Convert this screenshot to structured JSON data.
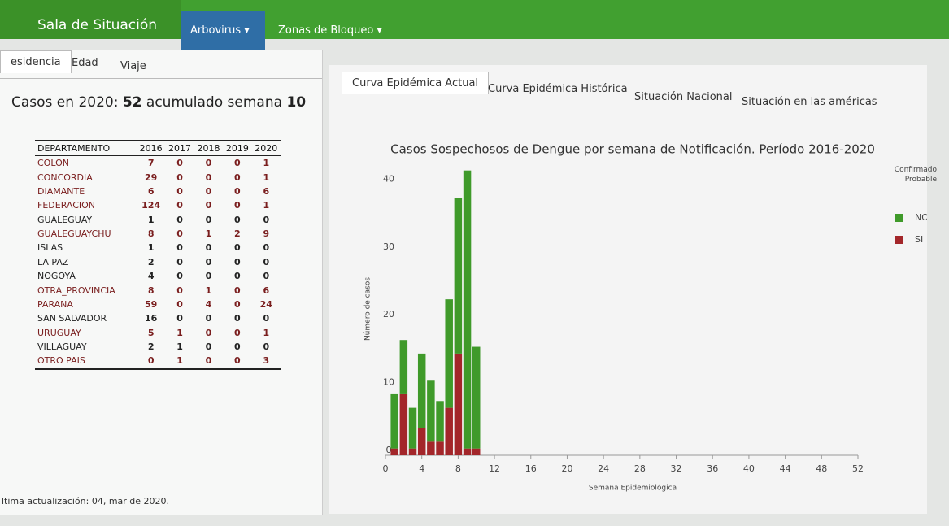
{
  "header": {
    "brand": "Sala de Situación",
    "menu": [
      "Arbovirus",
      "Zonas de Bloqueo"
    ]
  },
  "left_tabs": [
    "esidencia",
    "Edad",
    "Viaje"
  ],
  "summary": {
    "label": "Casos en 2020:",
    "cases": 52,
    "text": "acumulado semana",
    "week": 10
  },
  "table": {
    "columns": [
      "DEPARTAMENTO",
      "2016",
      "2017",
      "2018",
      "2019",
      "2020"
    ],
    "rows": [
      [
        "COLON",
        7,
        0,
        0,
        0,
        1
      ],
      [
        "CONCORDIA",
        29,
        0,
        0,
        0,
        1
      ],
      [
        "DIAMANTE",
        6,
        0,
        0,
        0,
        6
      ],
      [
        "FEDERACION",
        124,
        0,
        0,
        0,
        1
      ],
      [
        "GUALEGUAY",
        1,
        0,
        0,
        0,
        0
      ],
      [
        "GUALEGUAYCHU",
        8,
        0,
        1,
        2,
        9
      ],
      [
        "ISLAS",
        1,
        0,
        0,
        0,
        0
      ],
      [
        "LA PAZ",
        2,
        0,
        0,
        0,
        0
      ],
      [
        "NOGOYA",
        4,
        0,
        0,
        0,
        0
      ],
      [
        "OTRA_PROVINCIA",
        8,
        0,
        1,
        0,
        6
      ],
      [
        "PARANA",
        59,
        0,
        4,
        0,
        24
      ],
      [
        "SAN SALVADOR",
        16,
        0,
        0,
        0,
        0
      ],
      [
        "URUGUAY",
        5,
        1,
        0,
        0,
        1
      ],
      [
        "VILLAGUAY",
        2,
        1,
        0,
        0,
        0
      ],
      [
        "OTRO PAIS",
        0,
        1,
        0,
        0,
        3
      ]
    ]
  },
  "right_tabs": [
    "Curva Epidémica Actual",
    "Curva Epidémica Histórica",
    "Situación Nacional",
    "Situación en las américas"
  ],
  "chart_data": {
    "type": "bar",
    "stacked": true,
    "title": "Casos Sospechosos de Dengue por semana de Notificación. Período 2016-2020",
    "x_label": "Semana Epidemiológica",
    "y_label": "Número de casos",
    "legend_title": "Confirmado Probable",
    "x": [
      1,
      2,
      3,
      4,
      5,
      6,
      7,
      8,
      9,
      10
    ],
    "series": [
      {
        "name": "NO",
        "color": "#3f9a2a",
        "values": [
          8,
          8,
          6,
          11,
          9,
          6,
          16,
          23,
          41,
          15
        ]
      },
      {
        "name": "SI",
        "color": "#a3262a",
        "values": [
          1,
          9,
          1,
          4,
          2,
          2,
          7,
          15,
          1,
          1
        ]
      }
    ],
    "xlim": [
      0,
      52
    ],
    "xticks": [
      0,
      4,
      8,
      12,
      16,
      20,
      24,
      28,
      32,
      36,
      40,
      44,
      48,
      52
    ],
    "ylim": [
      0,
      44
    ],
    "yticks": [
      0,
      10,
      20,
      30,
      40
    ],
    "grid": false
  },
  "footer": "ltima actualización: 04, mar de 2020."
}
